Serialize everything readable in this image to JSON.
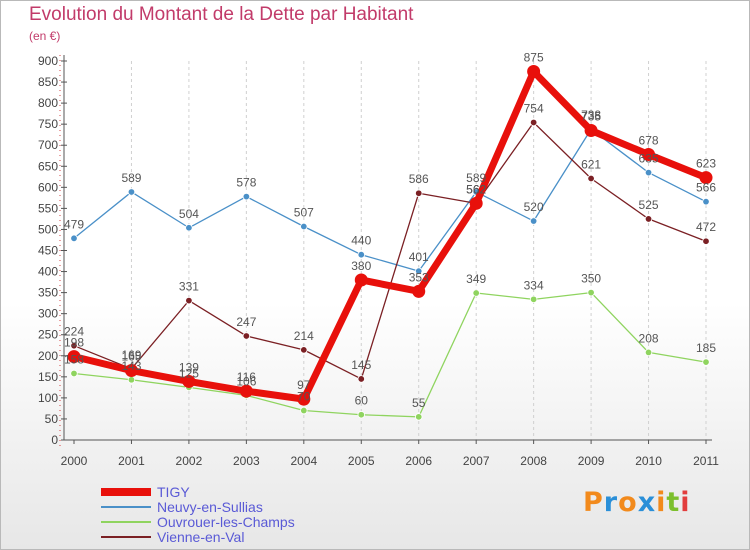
{
  "title": "Evolution du Montant de la Dette par Habitant",
  "unit_label": "(en €)",
  "logo": {
    "letters": [
      "P",
      "r",
      "o",
      "x",
      "i",
      "t",
      "i"
    ],
    "colors": [
      "#f28a1c",
      "#2a8fd8",
      "#f28a1c",
      "#2a8fd8",
      "#f28a1c",
      "#7cbf2d",
      "#e23d3d"
    ]
  },
  "chart_data": {
    "type": "line",
    "x": [
      "2000",
      "2001",
      "2002",
      "2003",
      "2004",
      "2005",
      "2006",
      "2007",
      "2008",
      "2009",
      "2010",
      "2011"
    ],
    "ylim": [
      0,
      900
    ],
    "yticks": [
      0,
      50,
      100,
      150,
      200,
      250,
      300,
      350,
      400,
      450,
      500,
      550,
      600,
      650,
      700,
      750,
      800,
      850,
      900
    ],
    "grid": "vertical dashed",
    "legend_position": "bottom-left",
    "series": [
      {
        "name": "TIGY",
        "color": "#e8100b",
        "values": [
          198,
          165,
          139,
          116,
          97,
          380,
          353,
          562,
          875,
          735,
          678,
          623
        ],
        "labels": [
          "198",
          "165",
          "139",
          "116",
          "97",
          "380",
          "353",
          "562",
          "875",
          "735",
          "678",
          "623"
        ]
      },
      {
        "name": "Neuvy-en-Sullias",
        "color": "#4a90c8",
        "values": [
          479,
          589,
          504,
          578,
          507,
          440,
          401,
          589,
          520,
          738,
          635,
          566
        ],
        "labels": [
          "479",
          "589",
          "504",
          "578",
          "507",
          "440",
          "401",
          "589",
          "520",
          "738",
          "635",
          "566"
        ]
      },
      {
        "name": "Ouvrouer-les-Champs",
        "color": "#8fd45f",
        "values": [
          158,
          143,
          125,
          106,
          70,
          60,
          55,
          349,
          334,
          350,
          208,
          185
        ],
        "labels": [
          "158",
          "143",
          "125",
          "106",
          "70",
          "60",
          "55",
          "349",
          "334",
          "350",
          "208",
          "185"
        ]
      },
      {
        "name": "Vienne-en-Val",
        "color": "#7b2024",
        "values": [
          224,
          169,
          331,
          247,
          214,
          145,
          586,
          562,
          754,
          621,
          525,
          472
        ],
        "labels": [
          "224",
          "169",
          "331",
          "247",
          "214",
          "145",
          "586",
          "562",
          "754",
          "621",
          "525",
          "472"
        ]
      }
    ]
  }
}
